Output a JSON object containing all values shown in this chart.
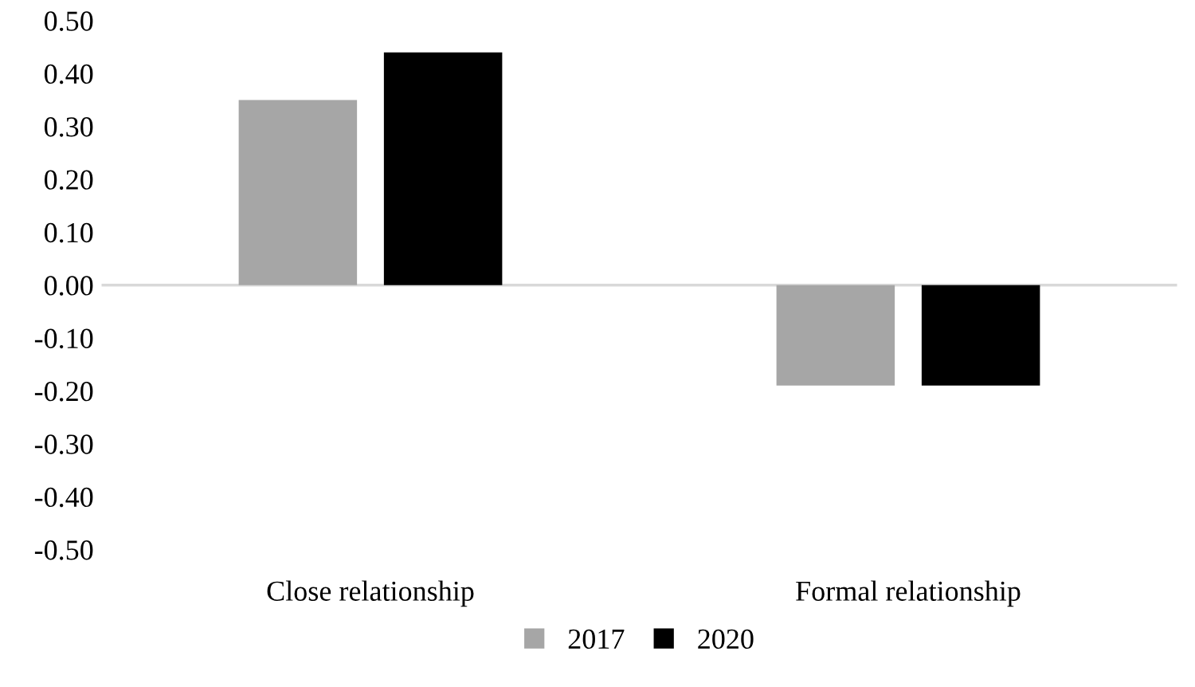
{
  "chart_data": {
    "type": "bar",
    "categories": [
      "Close relationship",
      "Formal relationship"
    ],
    "series": [
      {
        "name": "2017",
        "color": "#a6a6a6",
        "values": [
          0.35,
          -0.19
        ]
      },
      {
        "name": "2020",
        "color": "#000000",
        "values": [
          0.44,
          -0.19
        ]
      }
    ],
    "ylim": [
      -0.5,
      0.5
    ],
    "yticks": [
      {
        "value": -0.5,
        "label": "-0.50"
      },
      {
        "value": -0.4,
        "label": "-0.40"
      },
      {
        "value": -0.3,
        "label": "-0.30"
      },
      {
        "value": -0.2,
        "label": "-0.20"
      },
      {
        "value": -0.1,
        "label": "-0.10"
      },
      {
        "value": 0,
        "label": "0.00"
      },
      {
        "value": 0.1,
        "label": "0.10"
      },
      {
        "value": 0.2,
        "label": "0.20"
      },
      {
        "value": 0.3,
        "label": "0.30"
      },
      {
        "value": 0.4,
        "label": "0.40"
      },
      {
        "value": 0.5,
        "label": "0.50"
      }
    ],
    "ref_lines": [
      {
        "axis": "y",
        "value": 0,
        "color": "#d9d9d9"
      }
    ],
    "grid": false,
    "legend": "bottom"
  }
}
